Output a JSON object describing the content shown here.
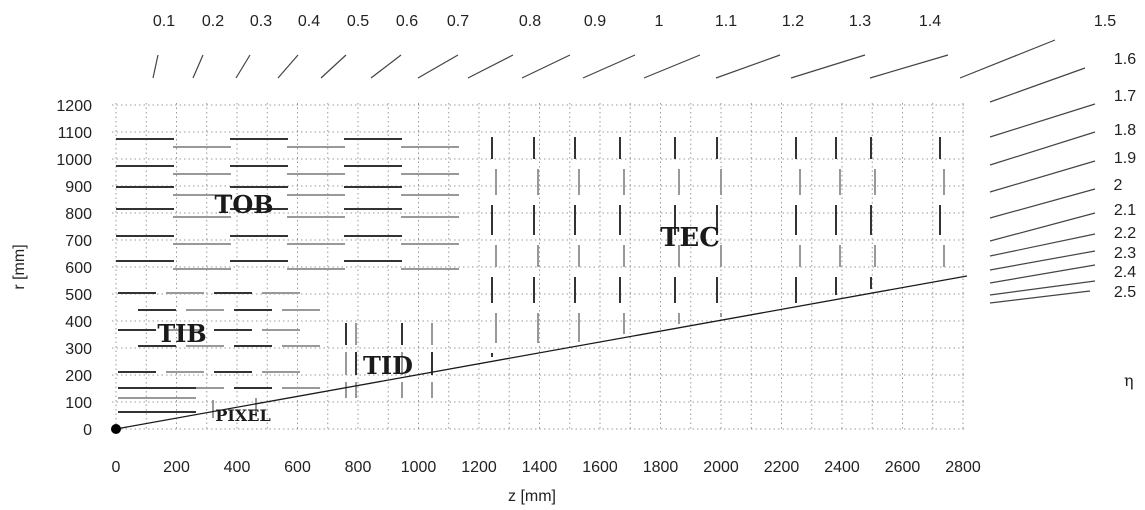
{
  "axes": {
    "x_label": "z [mm]",
    "y_label": "r [mm]",
    "x_ticks": [
      "0",
      "200",
      "400",
      "600",
      "800",
      "1000",
      "1200",
      "1400",
      "1600",
      "1800",
      "2000",
      "2200",
      "2400",
      "2600",
      "2800"
    ],
    "y_ticks": [
      "0",
      "100",
      "200",
      "300",
      "400",
      "500",
      "600",
      "700",
      "800",
      "900",
      "1000",
      "1100",
      "1200"
    ]
  },
  "eta": {
    "symbol": "η",
    "labels": [
      "0.1",
      "0.2",
      "0.3",
      "0.4",
      "0.5",
      "0.6",
      "0.7",
      "0.8",
      "0.9",
      "1",
      "1.1",
      "1.2",
      "1.3",
      "1.4",
      "1.5",
      "1.6",
      "1.7",
      "1.8",
      "1.9",
      "2",
      "2.1",
      "2.2",
      "2.3",
      "2.4",
      "2.5"
    ]
  },
  "regions": {
    "tob": "TOB",
    "tec": "TEC",
    "tib": "TIB",
    "tid": "TID",
    "pixel": "PIXEL"
  },
  "colors": {
    "ink": "#1a1a1a",
    "module_dark": "#333333",
    "module_light": "#999999",
    "grid": "#9a9a9a"
  }
}
